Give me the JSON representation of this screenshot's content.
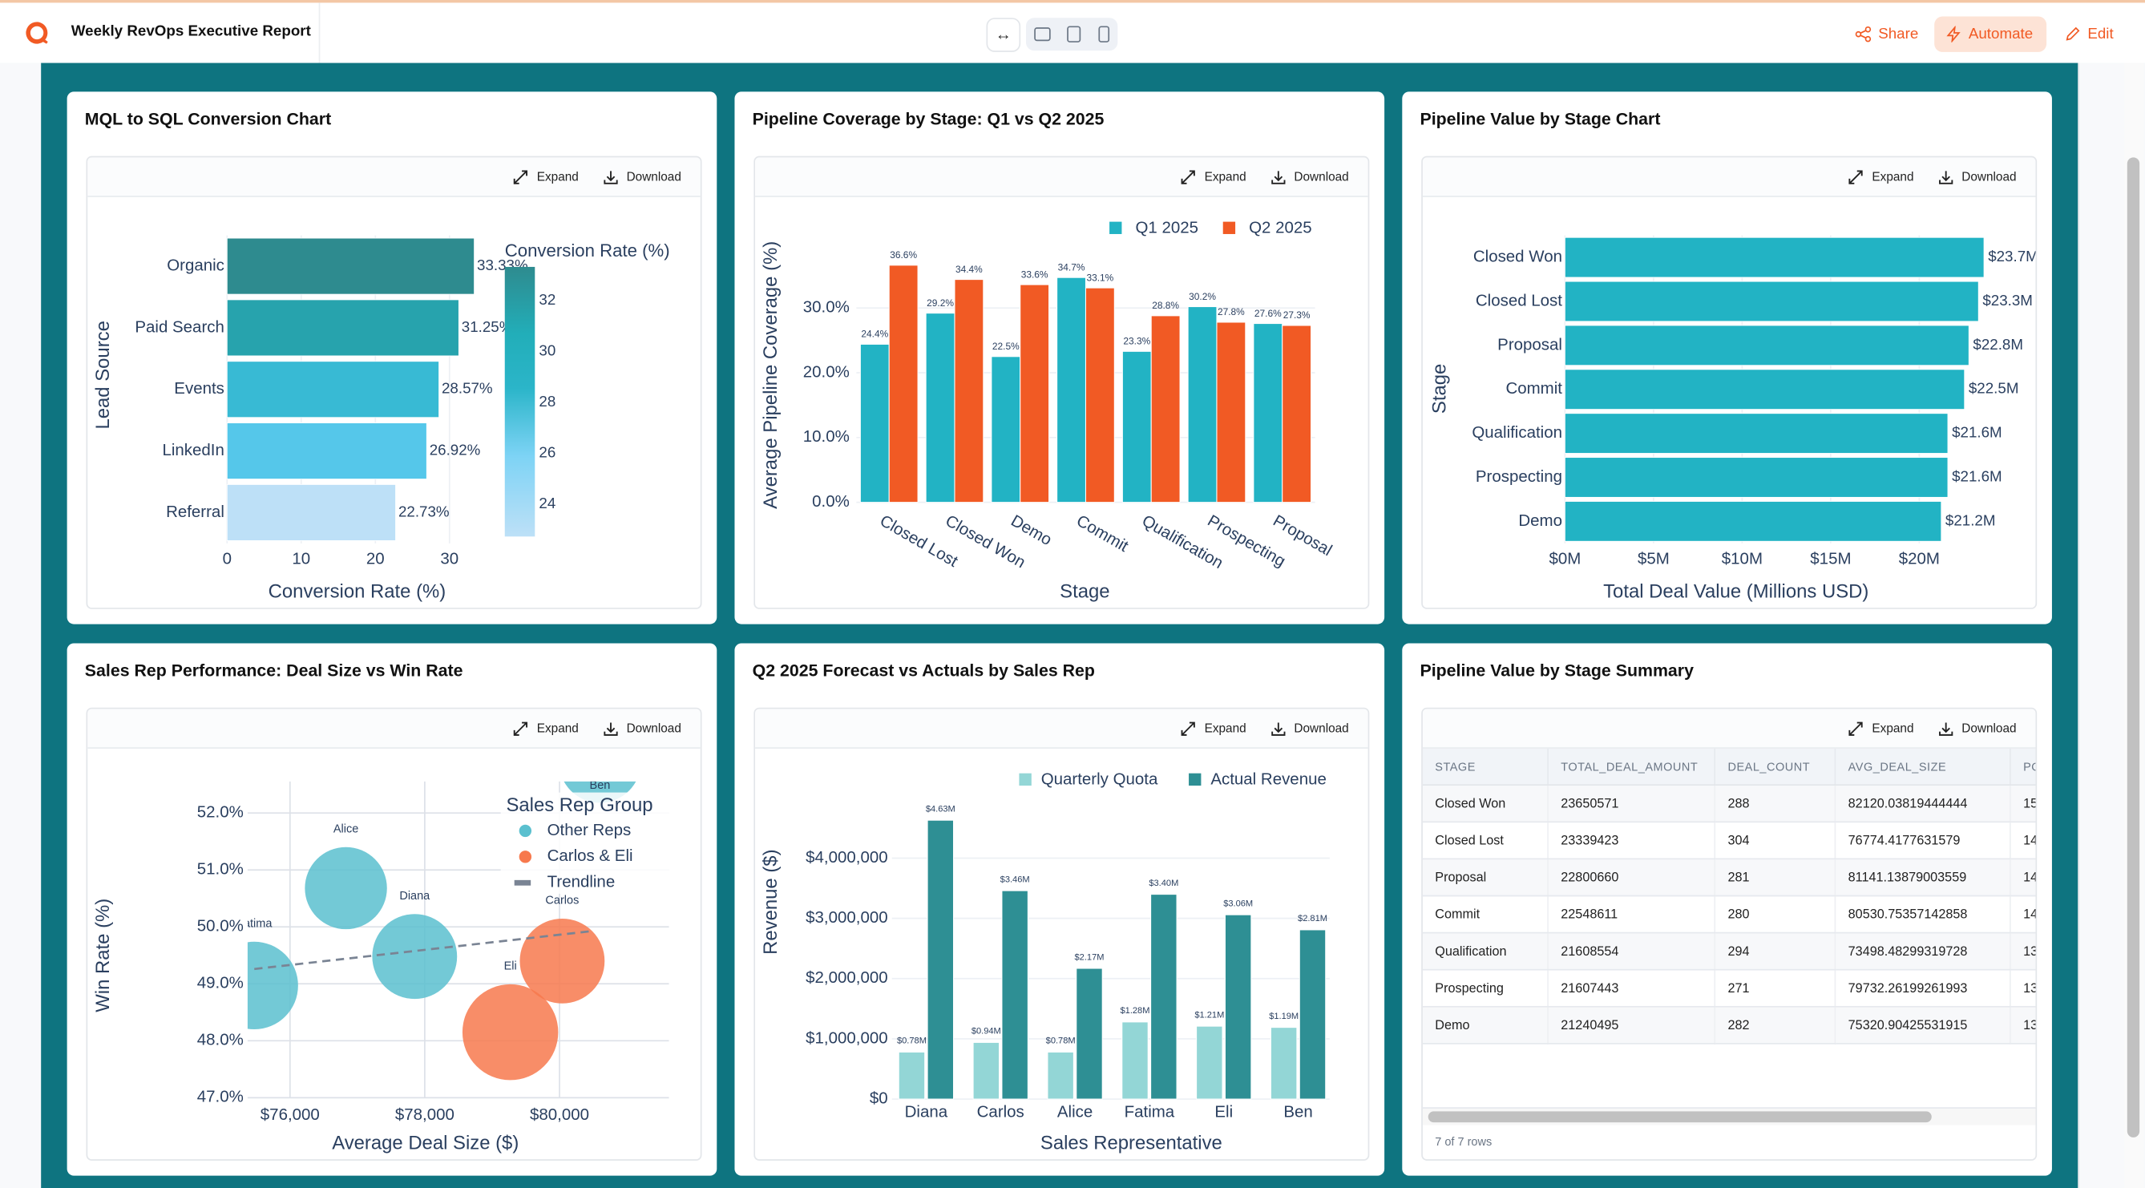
{
  "app": {
    "title": "Weekly RevOps Executive Report",
    "share": "Share",
    "automate": "Automate",
    "edit": "Edit",
    "accent": "#f15a24"
  },
  "toolbar": {
    "expand": "Expand",
    "download": "Download"
  },
  "cards": [
    {
      "title": "MQL to SQL Conversion Chart"
    },
    {
      "title": "Pipeline Coverage by Stage: Q1 vs Q2 2025"
    },
    {
      "title": "Pipeline Value by Stage Chart"
    },
    {
      "title": "Sales Rep Performance: Deal Size vs Win Rate"
    },
    {
      "title": "Q2 2025 Forecast vs Actuals by Sales Rep"
    },
    {
      "title": "Pipeline Value by Stage Summary"
    }
  ],
  "chart_data": [
    {
      "type": "bar",
      "orientation": "horizontal",
      "xlabel": "Conversion Rate (%)",
      "ylabel": "Lead Source",
      "categories": [
        "Organic",
        "Paid Search",
        "Events",
        "LinkedIn",
        "Referral"
      ],
      "values": [
        33.33,
        31.25,
        28.57,
        26.92,
        22.73
      ],
      "labels": [
        "33.33%",
        "31.25%",
        "28.57%",
        "26.92%",
        "22.73%"
      ],
      "colors": [
        "#2e8b8f",
        "#27a3ad",
        "#38bad4",
        "#55c7ea",
        "#bde0f7"
      ],
      "xticks": [
        "0",
        "10",
        "20",
        "30"
      ],
      "xlim": [
        0,
        33.33
      ],
      "colorbar": {
        "title": "Conversion Rate (%)",
        "ticks": [
          "24",
          "26",
          "28",
          "30",
          "32"
        ],
        "range": [
          22.73,
          33.33
        ]
      }
    },
    {
      "type": "bar",
      "xlabel": "Stage",
      "ylabel": "Average Pipeline Coverage (%)",
      "categories": [
        "Closed Lost",
        "Closed Won",
        "Demo",
        "Commit",
        "Qualification",
        "Prospecting",
        "Proposal"
      ],
      "series": [
        {
          "name": "Q1 2025",
          "color": "#22b3c4",
          "values": [
            24.4,
            29.2,
            22.5,
            34.7,
            23.3,
            30.2,
            27.6
          ],
          "labels": [
            "24.4%",
            "29.2%",
            "22.5%",
            "34.7%",
            "23.3%",
            "30.2%",
            "27.6%"
          ]
        },
        {
          "name": "Q2 2025",
          "color": "#f15a24",
          "values": [
            36.6,
            34.4,
            33.6,
            33.1,
            28.8,
            27.8,
            27.3
          ],
          "labels": [
            "36.6%",
            "34.4%",
            "33.6%",
            "33.1%",
            "28.8%",
            "27.8%",
            "27.3%"
          ]
        }
      ],
      "yticks": [
        "0.0%",
        "10.0%",
        "20.0%",
        "30.0%"
      ],
      "ylim": [
        0,
        38
      ],
      "legend": "top-right"
    },
    {
      "type": "bar",
      "orientation": "horizontal",
      "xlabel": "Total Deal Value (Millions USD)",
      "ylabel": "Stage",
      "categories": [
        "Closed Won",
        "Closed Lost",
        "Proposal",
        "Commit",
        "Qualification",
        "Prospecting",
        "Demo"
      ],
      "values": [
        23.65,
        23.34,
        22.8,
        22.55,
        21.61,
        21.61,
        21.24
      ],
      "labels": [
        "$23.7M",
        "$23.3M",
        "$22.8M",
        "$22.5M",
        "$21.6M",
        "$21.6M",
        "$21.2M"
      ],
      "color": "#22b3c4",
      "xticks": [
        "$0M",
        "$5M",
        "$10M",
        "$15M",
        "$20M"
      ],
      "xlim": [
        0,
        24.5
      ]
    },
    {
      "type": "scatter",
      "xlabel": "Average Deal Size ($)",
      "ylabel": "Win Rate (%)",
      "legend_title": "Sales Rep Group",
      "groups": [
        {
          "name": "Other Reps",
          "color": "#5bc0cf"
        },
        {
          "name": "Carlos & Eli",
          "color": "#f7794d"
        },
        {
          "name": "Trendline",
          "color": "#7a8494"
        }
      ],
      "points": [
        {
          "name": "Fatima",
          "x": 75470,
          "y": 48.97,
          "group": 0
        },
        {
          "name": "Alice",
          "x": 76830,
          "y": 50.68,
          "group": 0
        },
        {
          "name": "Diana",
          "x": 77850,
          "y": 49.48,
          "group": 0
        },
        {
          "name": "Eli",
          "x": 79270,
          "y": 48.15,
          "group": 1
        },
        {
          "name": "Carlos",
          "x": 80040,
          "y": 49.4,
          "group": 1
        },
        {
          "name": "Ben",
          "x": 80600,
          "y": 52.9,
          "group": 0
        }
      ],
      "trendline": [
        [
          75470,
          49.26
        ],
        [
          80510,
          49.93
        ]
      ],
      "xticks": [
        "$76,000",
        "$78,000",
        "$80,000"
      ],
      "yticks": [
        "47.0%",
        "48.0%",
        "49.0%",
        "50.0%",
        "51.0%",
        "52.0%"
      ],
      "xlim": [
        74620,
        81870
      ],
      "ylim": [
        47,
        52.55
      ],
      "legend": "top-right"
    },
    {
      "type": "bar",
      "xlabel": "Sales Representative",
      "ylabel": "Revenue ($)",
      "categories": [
        "Diana",
        "Carlos",
        "Alice",
        "Fatima",
        "Eli",
        "Ben"
      ],
      "series": [
        {
          "name": "Quarterly Quota",
          "color": "#93d6d6",
          "values": [
            0.78,
            0.94,
            0.78,
            1.28,
            1.21,
            1.19
          ],
          "labels": [
            "$0.78M",
            "$0.94M",
            "$0.78M",
            "$1.28M",
            "$1.21M",
            "$1.19M"
          ]
        },
        {
          "name": "Actual Revenue",
          "color": "#2e8f94",
          "values": [
            4.63,
            3.46,
            2.17,
            3.4,
            3.06,
            2.81
          ],
          "labels": [
            "$4.63M",
            "$3.46M",
            "$2.17M",
            "$3.40M",
            "$3.06M",
            "$2.81M"
          ]
        }
      ],
      "yticks": [
        "$0",
        "$1,000,000",
        "$2,000,000",
        "$3,000,000",
        "$4,000,000"
      ],
      "ylim": [
        0,
        5.2
      ],
      "legend": "top-right"
    }
  ],
  "table": {
    "columns": [
      "STAGE",
      "TOTAL_DEAL_AMOUNT",
      "DEAL_COUNT",
      "AVG_DEAL_SIZE",
      "PO"
    ],
    "rows": [
      [
        "Closed Won",
        "23650571",
        "288",
        "82120.03819444444",
        "15"
      ],
      [
        "Closed Lost",
        "23339423",
        "304",
        "76774.4177631579",
        "14"
      ],
      [
        "Proposal",
        "22800660",
        "281",
        "81141.13879003559",
        "14"
      ],
      [
        "Commit",
        "22548611",
        "280",
        "80530.75357142858",
        "14"
      ],
      [
        "Qualification",
        "21608554",
        "294",
        "73498.48299319728",
        "13"
      ],
      [
        "Prospecting",
        "21607443",
        "271",
        "79732.26199261993",
        "13"
      ],
      [
        "Demo",
        "21240495",
        "282",
        "75320.90425531915",
        "13"
      ]
    ],
    "footer": "7 of 7 rows"
  }
}
